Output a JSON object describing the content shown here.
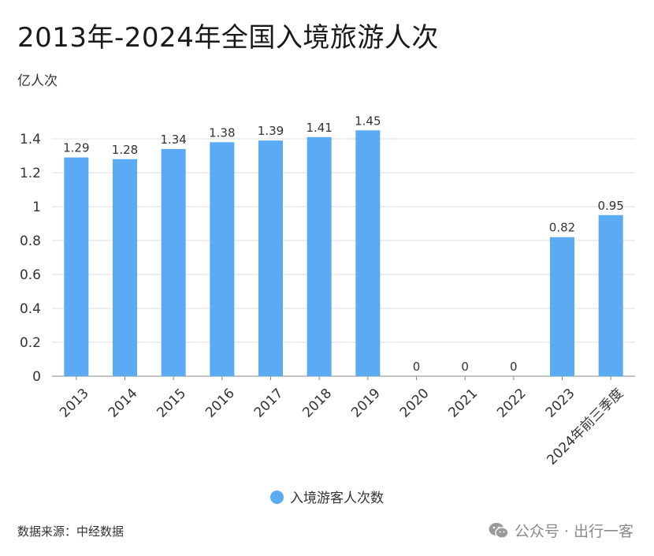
{
  "title": "2013年-2024年全国入境旅游人次",
  "unit_label": "亿人次",
  "legend_label": "入境游客人次数",
  "source": "数据来源：中经数据",
  "watermark": "公众号 · 出行一客",
  "colors": {
    "bar": "#5aabf4",
    "grid": "#dcdcdc",
    "axis": "#888888",
    "text": "#333333"
  },
  "chart_data": {
    "type": "bar",
    "categories": [
      "2013",
      "2014",
      "2015",
      "2016",
      "2017",
      "2018",
      "2019",
      "2020",
      "2021",
      "2022",
      "2023",
      "2024年前三季度"
    ],
    "series": [
      {
        "name": "入境游客人次数",
        "values": [
          1.29,
          1.28,
          1.34,
          1.38,
          1.39,
          1.41,
          1.45,
          0,
          0,
          0,
          0.82,
          0.95
        ]
      }
    ],
    "data_labels": [
      "1.29",
      "1.28",
      "1.34",
      "1.38",
      "1.39",
      "1.41",
      "1.45",
      "0",
      "0",
      "0",
      "0.82",
      "0.95"
    ],
    "yticks": [
      "0",
      "0.2",
      "0.4",
      "0.6",
      "0.8",
      "1",
      "1.2",
      "1.4"
    ],
    "ylim": [
      0,
      1.4
    ],
    "grid": true,
    "legend_position": "bottom-center"
  }
}
